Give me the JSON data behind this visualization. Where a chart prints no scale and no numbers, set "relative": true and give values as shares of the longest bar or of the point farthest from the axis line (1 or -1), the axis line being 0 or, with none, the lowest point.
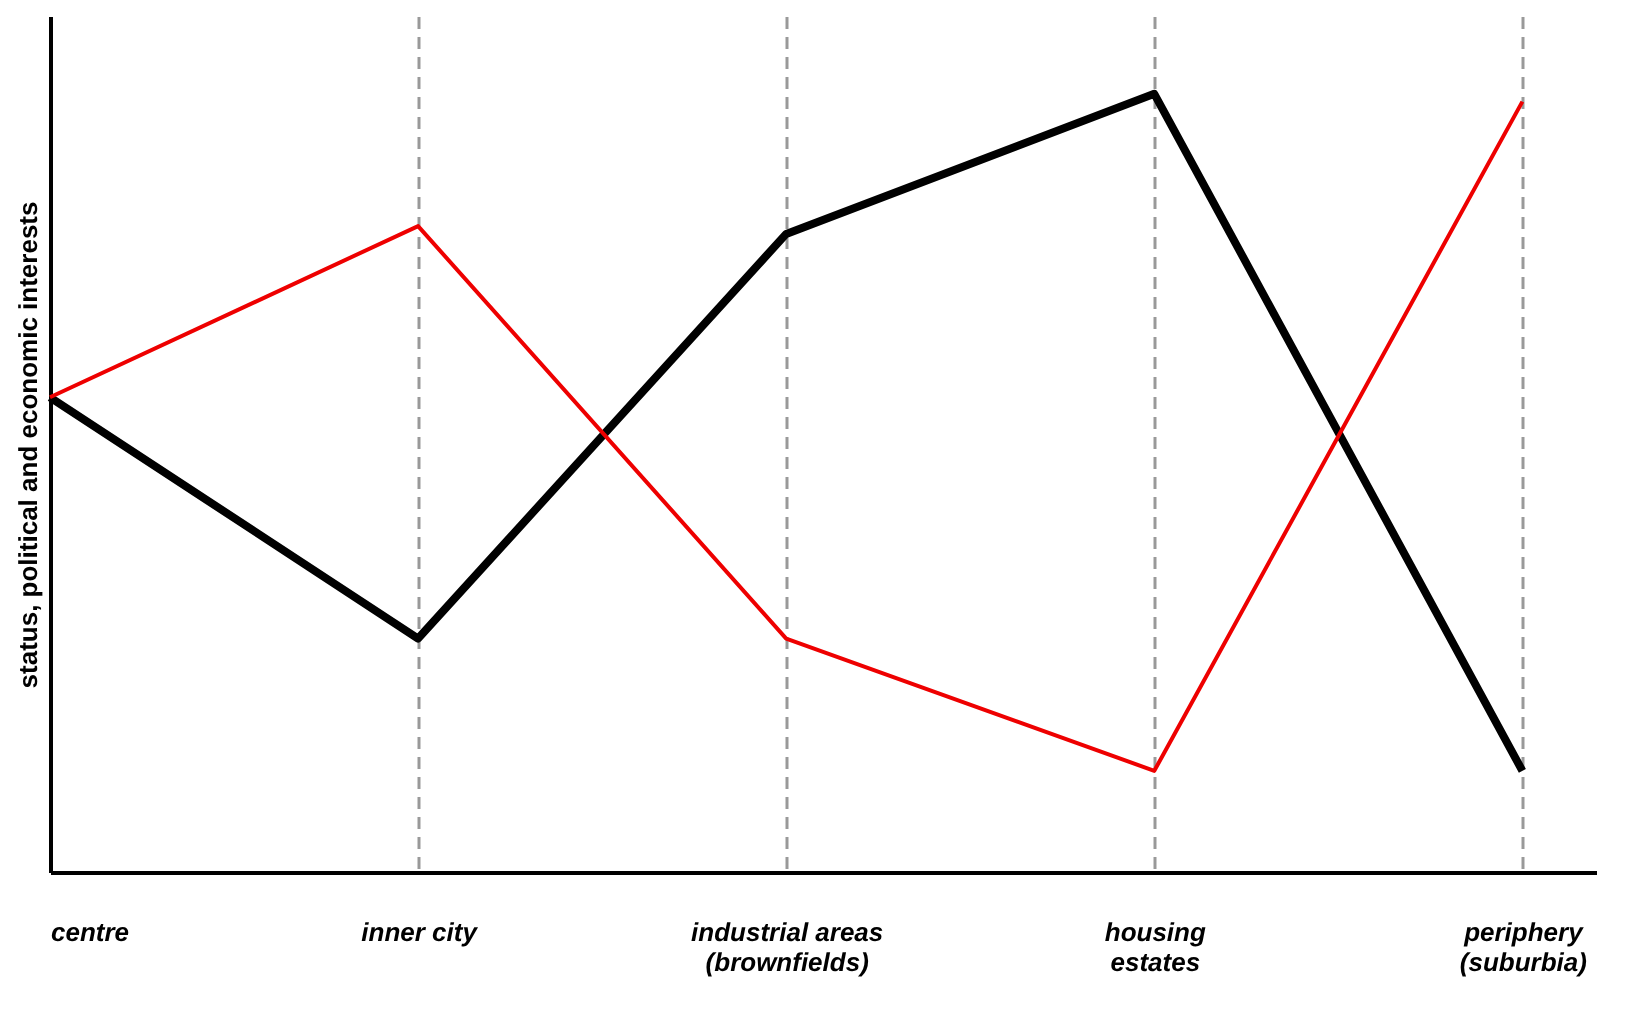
{
  "chart_data": {
    "type": "line",
    "relative": true,
    "ylabel": "status, political and economic interests",
    "categories": [
      "centre",
      "inner city",
      "industrial areas\n(brownfields)",
      "housing\nestates",
      "periphery\n(suburbia)"
    ],
    "series": [
      {
        "color": "#000000",
        "values": [
          0.61,
          0.3,
          0.82,
          1.0,
          0.13
        ]
      },
      {
        "color": "#ee0000",
        "values": [
          0.61,
          0.83,
          0.3,
          0.13,
          0.99
        ]
      }
    ],
    "grid": "x",
    "marker": "none",
    "line_style": "solid"
  }
}
